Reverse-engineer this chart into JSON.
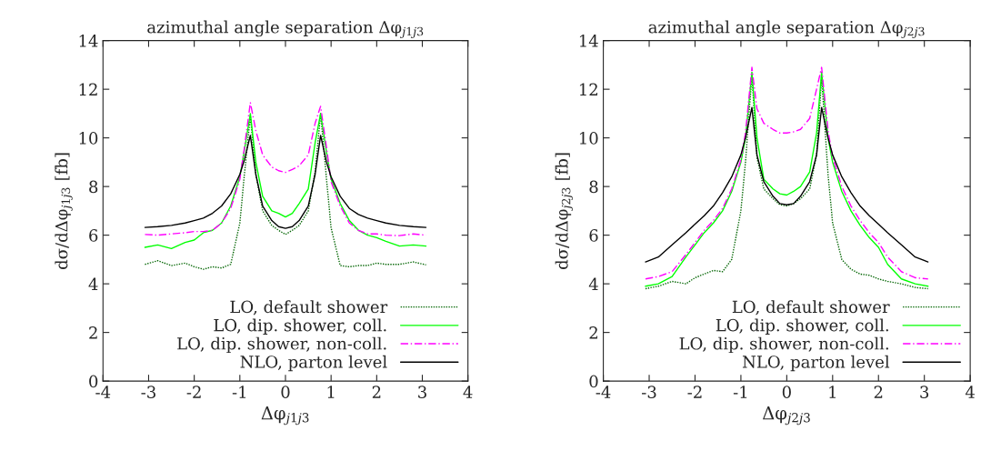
{
  "chart_data": [
    {
      "type": "line",
      "title": "azimuthal angle separation Δφ$_{j1j3}$",
      "xlabel": "Δφ$_{j1j3}$",
      "ylabel": "dσ/dΔφ$_{j1j3}$ [fb]",
      "x": [
        -3.08,
        -2.8,
        -2.5,
        -2.2,
        -2.0,
        -1.8,
        -1.6,
        -1.4,
        -1.2,
        -1.0,
        -0.9,
        -0.77,
        -0.65,
        -0.5,
        -0.3,
        -0.15,
        0,
        0.15,
        0.3,
        0.5,
        0.65,
        0.77,
        0.9,
        1.0,
        1.2,
        1.4,
        1.6,
        1.8,
        2.0,
        2.2,
        2.5,
        2.8,
        3.08
      ],
      "xlim": [
        -4,
        4
      ],
      "xticks": [
        -4,
        -3,
        -2,
        -1,
        0,
        1,
        2,
        3,
        4
      ],
      "ylim": [
        0,
        14
      ],
      "yticks": [
        0,
        2,
        4,
        6,
        8,
        10,
        12,
        14
      ],
      "grid": false,
      "legend": "bottom right",
      "marker": "none",
      "series": [
        {
          "name": "LO, default shower",
          "color": "#006400",
          "line_style": "dotted",
          "values": [
            4.8,
            4.95,
            4.75,
            4.85,
            4.7,
            4.6,
            4.7,
            4.65,
            4.8,
            6.5,
            8.5,
            10.9,
            8.5,
            7.0,
            6.4,
            6.2,
            6.03,
            6.2,
            6.4,
            7.0,
            8.6,
            11.0,
            8.3,
            6.3,
            4.75,
            4.7,
            4.75,
            4.75,
            4.85,
            4.8,
            4.8,
            4.9,
            4.78
          ]
        },
        {
          "name": "LO, dip. shower, coll.",
          "color": "#00ff00",
          "line_style": "solid",
          "values": [
            5.5,
            5.6,
            5.45,
            5.7,
            5.8,
            6.1,
            6.2,
            6.5,
            7.2,
            8.4,
            9.5,
            11.0,
            9.0,
            7.6,
            7.0,
            6.9,
            6.75,
            6.9,
            7.3,
            7.9,
            9.8,
            11.0,
            9.4,
            8.3,
            7.3,
            6.6,
            6.2,
            6.0,
            5.9,
            5.75,
            5.55,
            5.6,
            5.55
          ]
        },
        {
          "name": "LO, dip. shower, non-coll.",
          "color": "#ff00ff",
          "line_style": "dashed",
          "values": [
            6.03,
            6.0,
            6.05,
            6.1,
            6.15,
            6.15,
            6.2,
            6.5,
            7.1,
            8.3,
            9.6,
            11.45,
            10.3,
            9.3,
            8.8,
            8.65,
            8.58,
            8.7,
            8.85,
            9.3,
            10.6,
            11.3,
            9.6,
            8.2,
            7.2,
            6.5,
            6.2,
            6.05,
            6.05,
            6.0,
            5.98,
            6.05,
            6.0
          ]
        },
        {
          "name": "NLO, parton level",
          "color": "#000000",
          "line_style": "solid",
          "values": [
            6.32,
            6.35,
            6.4,
            6.5,
            6.6,
            6.7,
            6.9,
            7.2,
            7.7,
            8.5,
            9.1,
            10.1,
            8.5,
            7.2,
            6.6,
            6.35,
            6.28,
            6.35,
            6.6,
            7.2,
            8.5,
            10.1,
            9.0,
            8.4,
            7.6,
            7.1,
            6.85,
            6.7,
            6.6,
            6.5,
            6.4,
            6.35,
            6.32
          ]
        }
      ]
    },
    {
      "type": "line",
      "title": "azimuthal angle separation Δφ$_{j2j3}$",
      "xlabel": "Δφ$_{j2j3}$",
      "ylabel": "dσ/dΔφ$_{j2j3}$ [fb]",
      "x": [
        -3.08,
        -2.8,
        -2.5,
        -2.2,
        -2.0,
        -1.8,
        -1.6,
        -1.4,
        -1.2,
        -1.0,
        -0.9,
        -0.76,
        -0.65,
        -0.5,
        -0.3,
        -0.15,
        0,
        0.15,
        0.3,
        0.5,
        0.65,
        0.76,
        0.9,
        1.0,
        1.2,
        1.4,
        1.6,
        1.8,
        2.0,
        2.2,
        2.5,
        2.8,
        3.08
      ],
      "xlim": [
        -4,
        4
      ],
      "xticks": [
        -4,
        -3,
        -2,
        -1,
        0,
        1,
        2,
        3,
        4
      ],
      "ylim": [
        0,
        14
      ],
      "yticks": [
        0,
        2,
        4,
        6,
        8,
        10,
        12,
        14
      ],
      "grid": false,
      "legend": "bottom right",
      "marker": "none",
      "series": [
        {
          "name": "LO, default shower",
          "color": "#006400",
          "line_style": "dotted",
          "values": [
            3.8,
            3.9,
            4.1,
            4.0,
            4.25,
            4.4,
            4.55,
            4.5,
            5.0,
            7.0,
            9.0,
            12.6,
            9.2,
            7.9,
            7.5,
            7.25,
            7.2,
            7.3,
            7.5,
            7.9,
            9.3,
            12.5,
            8.5,
            6.5,
            5.0,
            4.6,
            4.4,
            4.35,
            4.2,
            4.1,
            4.0,
            3.85,
            3.8
          ]
        },
        {
          "name": "LO, dip. shower, coll.",
          "color": "#00ff00",
          "line_style": "solid",
          "values": [
            3.9,
            4.0,
            4.3,
            5.1,
            5.6,
            6.1,
            6.5,
            7.0,
            7.8,
            9.0,
            10.0,
            12.7,
            10.0,
            8.3,
            7.9,
            7.7,
            7.65,
            7.8,
            8.0,
            8.6,
            10.2,
            12.7,
            10.0,
            9.0,
            7.8,
            7.0,
            6.4,
            5.9,
            5.5,
            4.8,
            4.2,
            4.0,
            3.9
          ]
        },
        {
          "name": "LO, dip. shower, non-coll.",
          "color": "#ff00ff",
          "line_style": "dashed",
          "values": [
            4.2,
            4.3,
            4.5,
            5.2,
            5.7,
            6.2,
            6.6,
            7.1,
            7.9,
            9.1,
            10.2,
            12.9,
            11.2,
            10.6,
            10.35,
            10.2,
            10.2,
            10.25,
            10.35,
            10.8,
            12.0,
            12.9,
            10.3,
            9.2,
            8.0,
            7.2,
            6.6,
            6.1,
            5.7,
            5.1,
            4.5,
            4.25,
            4.2
          ]
        },
        {
          "name": "NLO, parton level",
          "color": "#000000",
          "line_style": "solid",
          "values": [
            4.9,
            5.1,
            5.6,
            6.1,
            6.45,
            6.8,
            7.2,
            7.75,
            8.4,
            9.3,
            10.0,
            11.25,
            9.3,
            8.2,
            7.6,
            7.3,
            7.25,
            7.3,
            7.6,
            8.2,
            9.3,
            11.25,
            10.0,
            9.3,
            8.4,
            7.75,
            7.2,
            6.8,
            6.45,
            6.1,
            5.6,
            5.1,
            4.9
          ]
        }
      ]
    }
  ]
}
